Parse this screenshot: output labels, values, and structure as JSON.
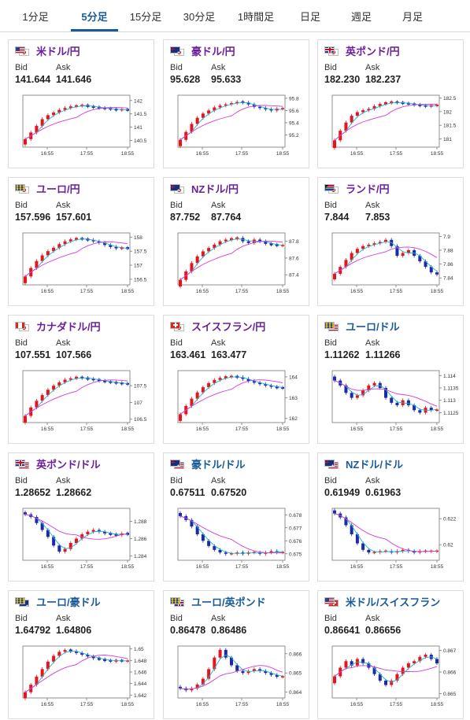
{
  "tabs": [
    {
      "label": "1分足",
      "active": false
    },
    {
      "label": "5分足",
      "active": true
    },
    {
      "label": "15分足",
      "active": false
    },
    {
      "label": "30分足",
      "active": false
    },
    {
      "label": "1時間足",
      "active": false
    },
    {
      "label": "日足",
      "active": false
    },
    {
      "label": "週足",
      "active": false
    },
    {
      "label": "月足",
      "active": false
    }
  ],
  "labels": {
    "bid": "Bid",
    "ask": "Ask"
  },
  "colors": {
    "up": "#e8141c",
    "down": "#1d2aa8",
    "ma_fast": "#19b5d2",
    "ma_slow": "#d43ad6",
    "active_tab": "#1a5a96",
    "pair_purple": "#6a1f9a",
    "pair_blue": "#1a5a96"
  },
  "cards": [
    {
      "pair": "米ドル/円",
      "bid": "141.644",
      "ask": "141.646",
      "flags": [
        "US",
        "JP"
      ],
      "chart_data": {
        "type": "candlestick",
        "x_ticks": [
          "16:55",
          "17:55",
          "18:55"
        ],
        "y_ticks": [
          "142",
          "141.5",
          "141",
          "140.5"
        ],
        "ylim": [
          140.25,
          142.2
        ],
        "close": [
          140.55,
          140.8,
          141.05,
          141.3,
          141.45,
          141.55,
          141.65,
          141.72,
          141.78,
          141.8,
          141.82,
          141.78,
          141.75,
          141.72,
          141.7,
          141.68,
          141.65,
          141.66,
          141.64
        ]
      }
    },
    {
      "pair": "豪ドル/円",
      "bid": "95.628",
      "ask": "95.633",
      "flags": [
        "AU",
        "JP"
      ],
      "chart_data": {
        "type": "candlestick",
        "x_ticks": [
          "16:55",
          "17:55",
          "18:55"
        ],
        "y_ticks": [
          "95.8",
          "95.6",
          "95.4",
          "95.2"
        ],
        "ylim": [
          95.0,
          95.85
        ],
        "close": [
          95.12,
          95.25,
          95.38,
          95.48,
          95.55,
          95.6,
          95.65,
          95.68,
          95.7,
          95.72,
          95.74,
          95.73,
          95.7,
          95.66,
          95.64,
          95.62,
          95.6,
          95.63,
          95.63
        ]
      }
    },
    {
      "pair": "英ポンド/円",
      "bid": "182.230",
      "ask": "182.237",
      "flags": [
        "GB",
        "JP"
      ],
      "chart_data": {
        "type": "candlestick",
        "x_ticks": [
          "16:55",
          "17:55",
          "18:55"
        ],
        "y_ticks": [
          "182.5",
          "182",
          "181.5",
          "181"
        ],
        "ylim": [
          180.7,
          182.6
        ],
        "close": [
          180.95,
          181.3,
          181.6,
          181.85,
          181.98,
          182.05,
          182.1,
          182.2,
          182.28,
          182.32,
          182.35,
          182.33,
          182.3,
          182.28,
          182.25,
          182.22,
          182.2,
          182.22,
          182.23
        ]
      }
    },
    {
      "pair": "ユーロ/円",
      "bid": "157.596",
      "ask": "157.601",
      "flags": [
        "EU",
        "JP"
      ],
      "chart_data": {
        "type": "candlestick",
        "x_ticks": [
          "16:55",
          "17:55",
          "18:55"
        ],
        "y_ticks": [
          "158",
          "157.5",
          "157",
          "156.5"
        ],
        "ylim": [
          156.3,
          158.15
        ],
        "close": [
          156.6,
          156.9,
          157.15,
          157.35,
          157.5,
          157.62,
          157.75,
          157.85,
          157.92,
          157.95,
          157.93,
          157.9,
          157.85,
          157.8,
          157.72,
          157.65,
          157.6,
          157.62,
          157.6
        ]
      }
    },
    {
      "pair": "NZドル/円",
      "bid": "87.752",
      "ask": "87.764",
      "flags": [
        "NZ",
        "JP"
      ],
      "chart_data": {
        "type": "candlestick",
        "x_ticks": [
          "16:55",
          "17:55",
          "18:55"
        ],
        "y_ticks": [
          "87.8",
          "87.6",
          "87.4"
        ],
        "ylim": [
          87.28,
          87.9
        ],
        "close": [
          87.34,
          87.44,
          87.54,
          87.62,
          87.68,
          87.72,
          87.76,
          87.8,
          87.82,
          87.83,
          87.84,
          87.8,
          87.78,
          87.82,
          87.8,
          87.77,
          87.76,
          87.75,
          87.75
        ]
      }
    },
    {
      "pair": "ランド/円",
      "bid": "7.844",
      "ask": "7.853",
      "flags": [
        "ZA",
        "JP"
      ],
      "chart_data": {
        "type": "candlestick",
        "x_ticks": [
          "16:55",
          "17:55",
          "18:55"
        ],
        "y_ticks": [
          "7.9",
          "7.88",
          "7.86",
          "7.84"
        ],
        "ylim": [
          7.83,
          7.905
        ],
        "close": [
          7.846,
          7.856,
          7.866,
          7.876,
          7.882,
          7.886,
          7.888,
          7.89,
          7.892,
          7.895,
          7.886,
          7.872,
          7.876,
          7.88,
          7.872,
          7.864,
          7.856,
          7.848,
          7.845
        ]
      }
    },
    {
      "pair": "カナダドル/円",
      "bid": "107.551",
      "ask": "107.566",
      "flags": [
        "CA",
        "JP"
      ],
      "chart_data": {
        "type": "candlestick",
        "x_ticks": [
          "16:55",
          "17:55",
          "18:55"
        ],
        "y_ticks": [
          "107.5",
          "107",
          "106.5"
        ],
        "ylim": [
          106.4,
          107.95
        ],
        "close": [
          106.6,
          106.85,
          107.05,
          107.22,
          107.38,
          107.5,
          107.6,
          107.68,
          107.72,
          107.75,
          107.73,
          107.7,
          107.68,
          107.65,
          107.62,
          107.6,
          107.58,
          107.56,
          107.55
        ]
      }
    },
    {
      "pair": "スイスフラン/円",
      "bid": "163.461",
      "ask": "163.477",
      "flags": [
        "CH",
        "JP"
      ],
      "chart_data": {
        "type": "candlestick",
        "x_ticks": [
          "16:55",
          "17:55",
          "18:55"
        ],
        "y_ticks": [
          "164",
          "163",
          "162"
        ],
        "ylim": [
          161.8,
          164.3
        ],
        "close": [
          162.2,
          162.6,
          162.95,
          163.25,
          163.5,
          163.7,
          163.85,
          163.95,
          164.0,
          164.02,
          163.98,
          163.9,
          163.8,
          163.72,
          163.65,
          163.58,
          163.52,
          163.48,
          163.46
        ]
      }
    },
    {
      "pair": "ユーロ/ドル",
      "bid": "1.11262",
      "ask": "1.11266",
      "flags": [
        "EU",
        "US"
      ],
      "chart_data": {
        "type": "candlestick",
        "x_ticks": [
          "16:55",
          "17:55",
          "18:55"
        ],
        "y_ticks": [
          "1.114",
          "1.1135",
          "1.113",
          "1.1125"
        ],
        "ylim": [
          1.1121,
          1.1142
        ],
        "close": [
          1.1138,
          1.1136,
          1.1133,
          1.1131,
          1.1132,
          1.1134,
          1.1136,
          1.1137,
          1.1135,
          1.1131,
          1.1129,
          1.1128,
          1.113,
          1.1128,
          1.1126,
          1.1125,
          1.1127,
          1.1126,
          1.1126
        ]
      }
    },
    {
      "pair": "英ポンド/ドル",
      "bid": "1.28652",
      "ask": "1.28662",
      "flags": [
        "GB",
        "US"
      ],
      "chart_data": {
        "type": "candlestick",
        "x_ticks": [
          "16:55",
          "17:55",
          "18:55"
        ],
        "y_ticks": [
          "1.288",
          "1.286",
          "1.284"
        ],
        "ylim": [
          1.2835,
          1.2895
        ],
        "close": [
          1.2888,
          1.2885,
          1.2878,
          1.287,
          1.2862,
          1.2852,
          1.2845,
          1.2848,
          1.2855,
          1.286,
          1.2865,
          1.2868,
          1.287,
          1.2868,
          1.2866,
          1.2865,
          1.2864,
          1.2866,
          1.2865
        ]
      }
    },
    {
      "pair": "豪ドル/ドル",
      "bid": "0.67511",
      "ask": "0.67520",
      "flags": [
        "AU",
        "US"
      ],
      "chart_data": {
        "type": "candlestick",
        "x_ticks": [
          "16:55",
          "17:55",
          "18:55"
        ],
        "y_ticks": [
          "0.678",
          "0.677",
          "0.676",
          "0.675"
        ],
        "ylim": [
          0.6745,
          0.6785
        ],
        "close": [
          0.6779,
          0.6776,
          0.6771,
          0.6765,
          0.676,
          0.6756,
          0.6753,
          0.6751,
          0.675,
          0.675,
          0.6751,
          0.675,
          0.6751,
          0.6751,
          0.675,
          0.6751,
          0.6752,
          0.6751,
          0.6751
        ]
      }
    },
    {
      "pair": "NZドル/ドル",
      "bid": "0.61949",
      "ask": "0.61963",
      "flags": [
        "NZ",
        "US"
      ],
      "chart_data": {
        "type": "candlestick",
        "x_ticks": [
          "16:55",
          "17:55",
          "18:55"
        ],
        "y_ticks": [
          "0.622",
          "0.62"
        ],
        "ylim": [
          0.6188,
          0.6228
        ],
        "close": [
          0.6224,
          0.6221,
          0.6215,
          0.6208,
          0.6201,
          0.6196,
          0.6194,
          0.6194,
          0.6195,
          0.6195,
          0.6194,
          0.6195,
          0.6196,
          0.6195,
          0.6194,
          0.6195,
          0.6195,
          0.6195,
          0.6195
        ]
      }
    },
    {
      "pair": "ユーロ/豪ドル",
      "bid": "1.64792",
      "ask": "1.64806",
      "flags": [
        "EU",
        "AU"
      ],
      "chart_data": {
        "type": "candlestick",
        "x_ticks": [
          "16:55",
          "17:55",
          "18:55"
        ],
        "y_ticks": [
          "1.65",
          "1.648",
          "1.646",
          "1.644",
          "1.642"
        ],
        "ylim": [
          1.6415,
          1.6505
        ],
        "close": [
          1.6425,
          1.6438,
          1.6452,
          1.6465,
          1.6478,
          1.6488,
          1.6495,
          1.6498,
          1.6496,
          1.6493,
          1.649,
          1.6487,
          1.6484,
          1.6482,
          1.648,
          1.6479,
          1.648,
          1.6479,
          1.6479
        ]
      }
    },
    {
      "pair": "ユーロ/英ポンド",
      "bid": "0.86478",
      "ask": "0.86486",
      "flags": [
        "EU",
        "GB"
      ],
      "chart_data": {
        "type": "candlestick",
        "x_ticks": [
          "16:55",
          "17:55",
          "18:55"
        ],
        "y_ticks": [
          "0.866",
          "0.865",
          "0.864"
        ],
        "ylim": [
          0.8637,
          0.8664
        ],
        "close": [
          0.8642,
          0.8641,
          0.8642,
          0.8644,
          0.8647,
          0.8652,
          0.8658,
          0.8662,
          0.8658,
          0.8654,
          0.8651,
          0.865,
          0.8651,
          0.8652,
          0.8651,
          0.865,
          0.8649,
          0.8648,
          0.8648
        ]
      }
    },
    {
      "pair": "米ドル/スイスフラン",
      "bid": "0.86641",
      "ask": "0.86656",
      "flags": [
        "US",
        "CH"
      ],
      "chart_data": {
        "type": "candlestick",
        "x_ticks": [
          "16:55",
          "17:55",
          "18:55"
        ],
        "y_ticks": [
          "0.867",
          "0.866",
          "0.865"
        ],
        "ylim": [
          0.8648,
          0.8672
        ],
        "close": [
          0.8658,
          0.8662,
          0.8665,
          0.8663,
          0.8666,
          0.8664,
          0.8662,
          0.8659,
          0.8656,
          0.8654,
          0.8656,
          0.8659,
          0.8662,
          0.8664,
          0.8665,
          0.8667,
          0.8668,
          0.8666,
          0.8664
        ]
      }
    }
  ]
}
